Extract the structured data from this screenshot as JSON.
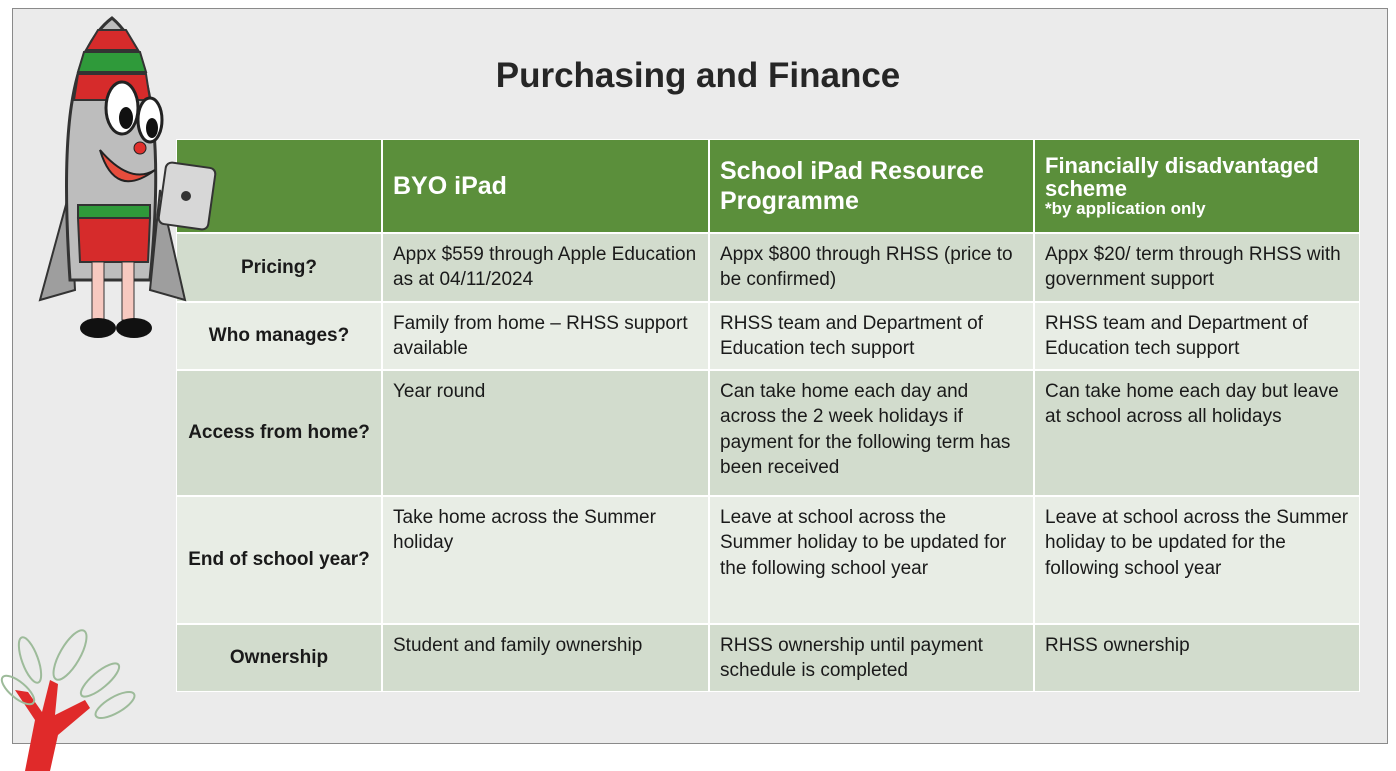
{
  "title": "Purchasing and Finance",
  "table": {
    "columns": [
      {
        "title": "BYO iPad"
      },
      {
        "title": "School iPad Resource Programme"
      },
      {
        "title": "Financially disadvantaged scheme",
        "note": "*by application only"
      }
    ],
    "rows": [
      [
        "Pricing?",
        "Appx $559 through Apple Education as at 04/11/2024",
        "Appx $800 through RHSS (price to be confirmed)",
        "Appx $20/ term through RHSS with government support"
      ],
      [
        "Who manages?",
        "Family from home – RHSS support available",
        "RHSS team and Department of Education tech support",
        "RHSS team and Department of Education tech support"
      ],
      [
        "Access from home?",
        "Year round",
        "Can take home each day and across the 2 week holidays if payment for the following term has been received",
        "Can take home each day but leave at school across all holidays"
      ],
      [
        "End of school year?",
        "Take home across the Summer holiday",
        "Leave at school across the Summer holiday to be updated for the following school year",
        "Leave at school across the Summer holiday to be updated for the following school year"
      ],
      [
        "Ownership",
        "Student and family ownership",
        "RHSS ownership until payment schedule is completed",
        "RHSS ownership"
      ]
    ]
  }
}
